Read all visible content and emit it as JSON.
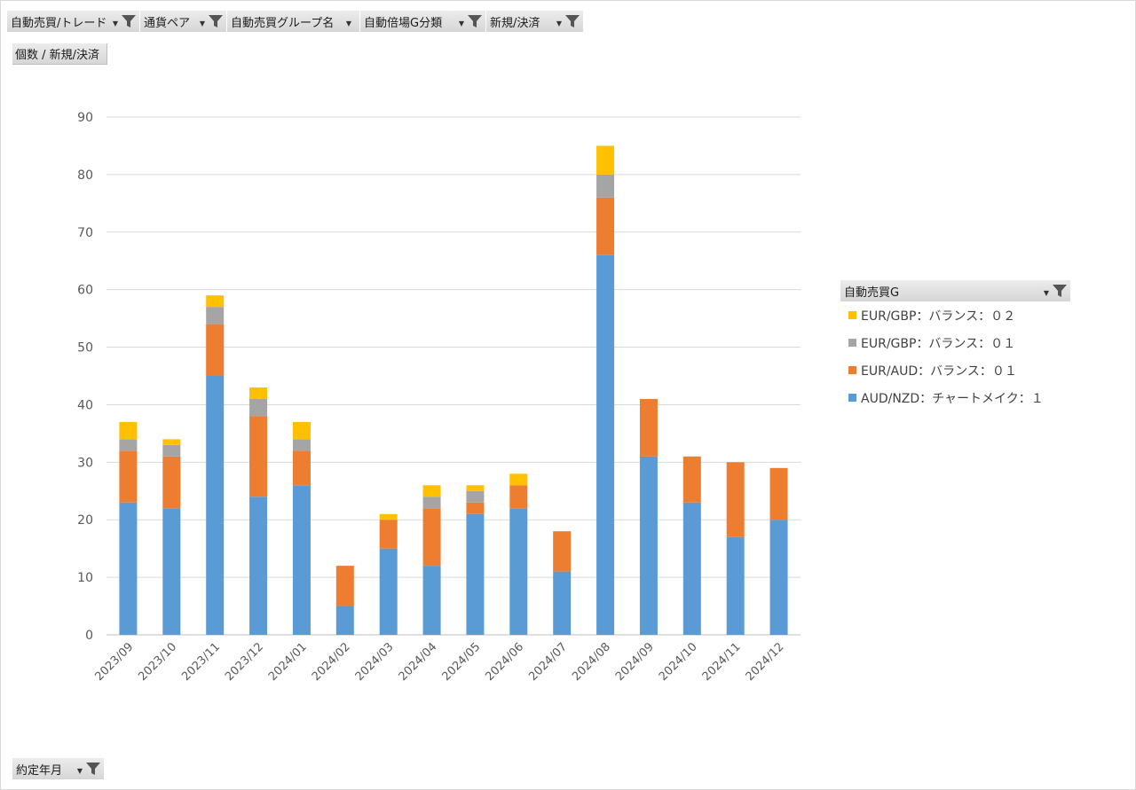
{
  "filters": [
    {
      "label": "自動売買/トレード",
      "has_filter_icon": true
    },
    {
      "label": "通貨ペア",
      "has_filter_icon": true
    },
    {
      "label": "自動売買グループ名",
      "has_filter_icon": false
    },
    {
      "label": "自動倍場G分類",
      "has_filter_icon": true
    },
    {
      "label": "新規/決済",
      "has_filter_icon": true
    }
  ],
  "value_field": "個数 / 新規/決済",
  "axis_field": "約定年月",
  "legend_field": "自動売買G",
  "colors": {
    "AUD/NZD：チャートメイク：１": "#5b9bd5",
    "EUR/AUD：バランス：０１": "#ed7d31",
    "EUR/GBP：バランス：０１": "#a5a5a5",
    "EUR/GBP：バランス：０２": "#ffc000"
  },
  "chart_data": {
    "type": "bar",
    "stacked": true,
    "categories": [
      "2023/09",
      "2023/10",
      "2023/11",
      "2023/12",
      "2024/01",
      "2024/02",
      "2024/03",
      "2024/04",
      "2024/05",
      "2024/06",
      "2024/07",
      "2024/08",
      "2024/09",
      "2024/10",
      "2024/11",
      "2024/12"
    ],
    "series": [
      {
        "name": "AUD/NZD：チャートメイク：１",
        "values": [
          23,
          22,
          45,
          24,
          26,
          5,
          15,
          12,
          21,
          22,
          11,
          66,
          31,
          23,
          17,
          20
        ]
      },
      {
        "name": "EUR/AUD：バランス：０１",
        "values": [
          9,
          9,
          9,
          14,
          6,
          7,
          5,
          10,
          2,
          4,
          7,
          10,
          10,
          8,
          13,
          9
        ]
      },
      {
        "name": "EUR/GBP：バランス：０１",
        "values": [
          2,
          2,
          3,
          3,
          2,
          0,
          0,
          2,
          2,
          0,
          0,
          4,
          0,
          0,
          0,
          0
        ]
      },
      {
        "name": "EUR/GBP：バランス：０２",
        "values": [
          3,
          1,
          2,
          2,
          3,
          0,
          1,
          2,
          1,
          2,
          0,
          5,
          0,
          0,
          0,
          0
        ]
      }
    ],
    "yticks": [
      0,
      10,
      20,
      30,
      40,
      50,
      60,
      70,
      80,
      90
    ],
    "ylim": [
      0,
      90
    ],
    "grid": true,
    "legend_position": "right"
  }
}
